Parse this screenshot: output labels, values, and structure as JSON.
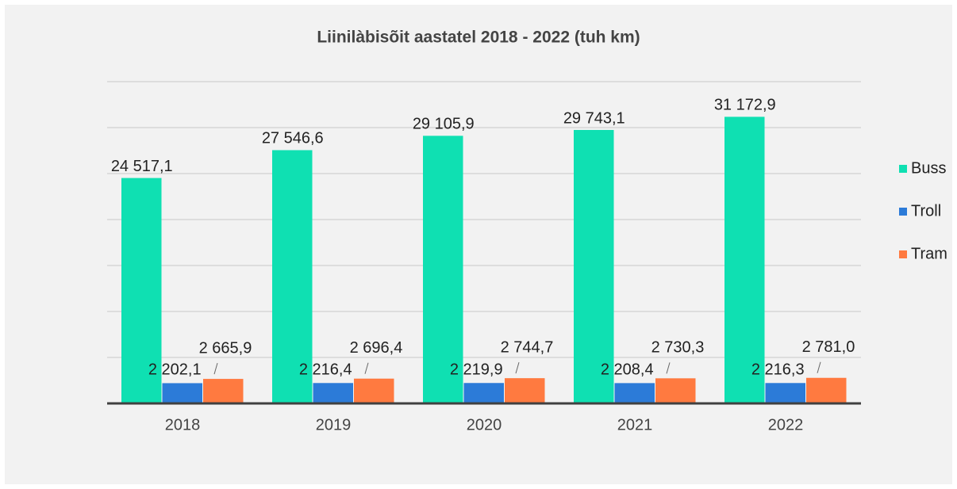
{
  "chart_data": {
    "type": "bar",
    "title": "Liinilàbisõit aastatel 2018 - 2022 (tuh km)",
    "categories": [
      "2018",
      "2019",
      "2020",
      "2021",
      "2022"
    ],
    "series": [
      {
        "name": "Buss",
        "color": "#0fe0b2",
        "values": [
          24517.1,
          27546.6,
          29105.9,
          29743.1,
          31172.9
        ],
        "value_labels": [
          "24 517,1",
          "27 546,6",
          "29 105,9",
          "29 743,1",
          "31 172,9"
        ]
      },
      {
        "name": "Troll",
        "color": "#2c7bd8",
        "values": [
          2202.1,
          2216.4,
          2219.9,
          2208.4,
          2216.3
        ],
        "value_labels": [
          "2 202,1",
          "2 216,4",
          "2 219,9",
          "2 208,4",
          "2 216,3"
        ]
      },
      {
        "name": "Tram",
        "color": "#ff7a40",
        "values": [
          2665.9,
          2696.4,
          2744.7,
          2730.3,
          2781.0
        ],
        "value_labels": [
          "2 665,9",
          "2 696,4",
          "2 744,7",
          "2 730,3",
          "2 781,0"
        ]
      }
    ],
    "ylim": [
      0,
      35000
    ],
    "yticks": [
      0,
      5000,
      10000,
      15000,
      20000,
      25000,
      30000,
      35000
    ],
    "grid": true,
    "legend": "right"
  }
}
